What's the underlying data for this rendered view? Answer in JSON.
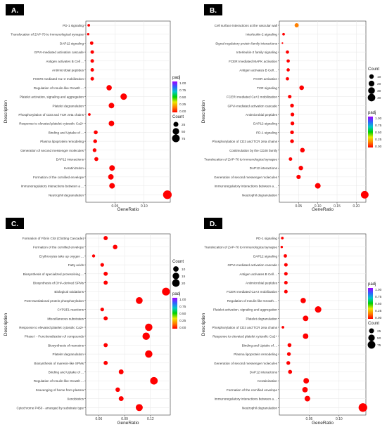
{
  "figure": {
    "panel_labels": [
      "A.",
      "B.",
      "C.",
      "D."
    ]
  },
  "colors": {
    "point": "#ff1a00",
    "panel_label_bg": "#000000",
    "panel_label_fg": "#ffffff",
    "frame": "#333333",
    "gradient": [
      "#ff0000",
      "#ff8000",
      "#e8e800",
      "#00d000",
      "#00c8c8",
      "#3060ff",
      "#a000ff"
    ]
  },
  "chart_data": [
    {
      "panel": "A.",
      "type": "scatter",
      "xlabel": "GeneRatio",
      "ylabel": "Description",
      "xlim": [
        0.0,
        0.145
      ],
      "xticks": [
        0.05,
        0.1
      ],
      "xtick_labels": [
        "0.05",
        "0.10"
      ],
      "grid": true,
      "legend_placement": "right",
      "legend": {
        "color_title": "padj",
        "color_ticks": [
          "1.00",
          "0.75",
          "0.50",
          "0.25",
          "0.00"
        ],
        "size_title": "Count",
        "size_ticks": [
          "25",
          "50",
          "75"
        ],
        "size_values": [
          25,
          50,
          75
        ],
        "size_range": [
          3,
          80
        ]
      },
      "categories": [
        "PD-1 signaling",
        "Translocation of ZAP-70 to Immunological synapse",
        "DAP12 signaling",
        "GPVI-mediated activation cascade",
        "Antigen activates B Cell ...",
        "Antimicrobial peptides",
        "FCERI mediated Ca+2 mobilization",
        "Regulation of Insulin-like Growth ...",
        "Platelet activation, signaling and aggregation",
        "Platelet degranulation",
        "Phosphorylation of CD3 and TCR zeta chains",
        "Response to elevated platelet cytosolic Ca2+",
        "Binding and Uptake of ...",
        "Plasma lipoprotein remodeling",
        "Generation of second messenger molecules",
        "DAP12 interactions",
        "Keratinization",
        "Formation of the cornified envelope",
        "Immunoregulatory interactions between a ...",
        "Neutrophil degranulation"
      ],
      "x": [
        0.005,
        0.004,
        0.01,
        0.011,
        0.011,
        0.011,
        0.011,
        0.04,
        0.065,
        0.044,
        0.006,
        0.044,
        0.017,
        0.016,
        0.015,
        0.018,
        0.045,
        0.043,
        0.045,
        0.14
      ],
      "count": [
        5,
        4,
        9,
        10,
        10,
        10,
        10,
        30,
        48,
        33,
        5,
        33,
        13,
        12,
        12,
        14,
        34,
        32,
        34,
        100
      ],
      "padj": [
        0.02,
        0.02,
        0.01,
        0.01,
        0.01,
        0.01,
        0.01,
        0.0,
        0.0,
        0.0,
        0.02,
        0.0,
        0.01,
        0.01,
        0.01,
        0.01,
        0.0,
        0.0,
        0.0,
        0.0
      ]
    },
    {
      "panel": "B.",
      "type": "scatter",
      "xlabel": "GeneRatio",
      "ylabel": "Description",
      "xlim": [
        0.0,
        0.225
      ],
      "xticks": [
        0.05,
        0.1,
        0.15,
        0.2
      ],
      "xtick_labels": [
        "0.05",
        "0.10",
        "0.15",
        "0.20"
      ],
      "grid": true,
      "legend_placement": "right",
      "legend": {
        "color_title": "padj",
        "color_ticks": [
          "1.00",
          "0.75",
          "0.50",
          "0.25",
          "0.00"
        ],
        "size_title": "Count",
        "size_ticks": [
          "10",
          "20",
          "30",
          "40"
        ],
        "size_values": [
          10,
          20,
          30,
          40
        ],
        "size_range": [
          1,
          45
        ]
      },
      "categories": [
        "Cell surface interactions at the vascular wall",
        "Interleukin-2 signaling",
        "Signal regulatory protein family interactions",
        "Interleukin-2 family signaling",
        "FCERI mediated MAPK activation",
        "Antigen activates B Cell ...",
        "FCGR activation",
        "TCR signaling",
        "FCERI mediated Ca+2 mobilization",
        "GPVI-mediated activation cascade",
        "Antimicrobial peptides",
        "DAP12 signaling",
        "PD-1 signaling",
        "Phosphorylation of CD3 and TCR zeta chains",
        "Costimulation by the CD28 family",
        "Translocation of ZAP-70 to Immunological synapse",
        "DAP12 interactions",
        "Generation of second messenger molecules",
        "Immunoregulatory interactions between a ...",
        "Neutrophil degranulation"
      ],
      "x": [
        0.045,
        0.011,
        0.008,
        0.021,
        0.023,
        0.023,
        0.021,
        0.058,
        0.027,
        0.033,
        0.034,
        0.034,
        0.033,
        0.033,
        0.06,
        0.029,
        0.056,
        0.05,
        0.1,
        0.222
      ],
      "count": [
        8,
        2,
        1,
        4,
        4,
        4,
        4,
        11,
        5,
        6,
        6,
        6,
        6,
        6,
        11,
        5,
        10,
        9,
        19,
        42
      ],
      "padj": [
        0.12,
        0.05,
        0.05,
        0.02,
        0.02,
        0.02,
        0.02,
        0.01,
        0.02,
        0.02,
        0.02,
        0.02,
        0.02,
        0.02,
        0.01,
        0.02,
        0.01,
        0.01,
        0.0,
        0.0
      ]
    },
    {
      "panel": "C.",
      "type": "scatter",
      "xlabel": "GeneRatio",
      "ylabel": "Description",
      "xlim": [
        0.045,
        0.143
      ],
      "xticks": [
        0.06,
        0.09,
        0.12
      ],
      "xtick_labels": [
        "0.06",
        "0.09",
        "0.12"
      ],
      "grid": true,
      "legend_placement": "right",
      "legend": {
        "color_title": "padj",
        "color_ticks": [
          "1.00",
          "0.75",
          "0.50",
          "0.25",
          "0.00"
        ],
        "size_title": "Count",
        "size_ticks": [
          "10",
          "15",
          "20"
        ],
        "size_values": [
          10,
          15,
          20
        ],
        "size_range": [
          3,
          22
        ]
      },
      "categories": [
        "Formation of Fibrin Clot (Clotting Cascade)",
        "Formation of the cornified envelope",
        "Erythrocytes take up oxygen ...",
        "Fatty acids",
        "Biosynthesis of specialized proresolving ...",
        "Biosynthesis of DHA-derived SPMs",
        "Biological oxidations",
        "Post-translational protein phosphorylation",
        "CYP2E1 reactions",
        "Miscellaneous substrates",
        "Response to elevated platelet cytosolic Ca2+",
        "Phase I - Functionalization of compounds",
        "Biosynthesis of maresins",
        "Platelet degranulation",
        "Biosynthesis of maresin-like SPMs",
        "Binding and Uptake of ...",
        "Regulation of Insulin-like Growth ...",
        "Scavenging of heme from plasma",
        "Xenobiotics",
        "Cytochrome P450 - arranged by substrate type"
      ],
      "x": [
        0.068,
        0.079,
        0.054,
        0.064,
        0.068,
        0.068,
        0.138,
        0.107,
        0.064,
        0.068,
        0.118,
        0.115,
        0.068,
        0.118,
        0.068,
        0.086,
        0.124,
        0.082,
        0.086,
        0.107
      ],
      "count": [
        6,
        7,
        4,
        5,
        6,
        6,
        22,
        16,
        5,
        6,
        19,
        19,
        6,
        19,
        6,
        8,
        20,
        7,
        8,
        17
      ],
      "padj": [
        0.03,
        0.02,
        0.04,
        0.03,
        0.03,
        0.03,
        0.0,
        0.0,
        0.03,
        0.03,
        0.0,
        0.0,
        0.03,
        0.0,
        0.03,
        0.01,
        0.0,
        0.02,
        0.01,
        0.0
      ]
    },
    {
      "panel": "D.",
      "type": "scatter",
      "xlabel": "GeneRatio",
      "ylabel": "Description",
      "xlim": [
        0.0,
        0.145
      ],
      "xticks": [
        0.05,
        0.1
      ],
      "xtick_labels": [
        "0.05",
        "0.10"
      ],
      "grid": true,
      "legend_placement": "right",
      "legend": {
        "color_title": "padj",
        "color_ticks": [
          "1.00",
          "0.75",
          "0.50",
          "0.25",
          "0.00"
        ],
        "size_title": "Count",
        "size_ticks": [
          "25",
          "50",
          "75"
        ],
        "size_values": [
          25,
          50,
          75
        ],
        "size_range": [
          3,
          80
        ]
      },
      "categories": [
        "PD-1 signaling",
        "Translocation of ZAP-70 to Immunological synapse",
        "DAP12 signaling",
        "GPVI-mediated activation cascade",
        "Antigen activates B Cell ...",
        "Antimicrobial peptides",
        "FCERI mediated Ca+2 mobilization",
        "Regulation of Insulin-like Growth ...",
        "Platelet activation, signaling and aggregation",
        "Platelet degranulation",
        "Phosphorylation of CD3 and TCR zeta chains",
        "Response to elevated platelet cytosolic Ca2+",
        "Binding and Uptake of ...",
        "Plasma lipoprotein remodeling",
        "Generation of second messenger molecules",
        "DAP12 interactions",
        "Keratinization",
        "Formation of the cornified envelope",
        "Immunoregulatory interactions between a ...",
        "Neutrophil degranulation"
      ],
      "x": [
        0.005,
        0.004,
        0.01,
        0.011,
        0.011,
        0.011,
        0.011,
        0.04,
        0.065,
        0.044,
        0.006,
        0.044,
        0.017,
        0.016,
        0.015,
        0.018,
        0.045,
        0.043,
        0.047,
        0.14
      ],
      "count": [
        5,
        4,
        9,
        10,
        10,
        10,
        10,
        30,
        48,
        33,
        5,
        33,
        13,
        12,
        12,
        14,
        34,
        32,
        34,
        100
      ],
      "padj": [
        0.02,
        0.02,
        0.01,
        0.01,
        0.01,
        0.01,
        0.01,
        0.0,
        0.0,
        0.0,
        0.02,
        0.0,
        0.01,
        0.01,
        0.01,
        0.01,
        0.0,
        0.0,
        0.0,
        0.0
      ]
    }
  ]
}
